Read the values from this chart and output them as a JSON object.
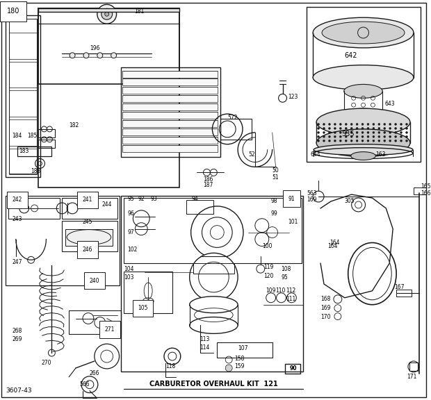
{
  "bg_color": "#ffffff",
  "diagram_id": "3607-43",
  "bottom_label": "CARBURETOR OVERHAUL KIT  121",
  "title_underline": true,
  "figsize": [
    6.2,
    5.76
  ],
  "dpi": 100,
  "line_color": "#1a1a1a",
  "text_color": "#000000",
  "font_size_small": 5.5,
  "font_size_med": 7.0,
  "font_size_large": 8.5
}
